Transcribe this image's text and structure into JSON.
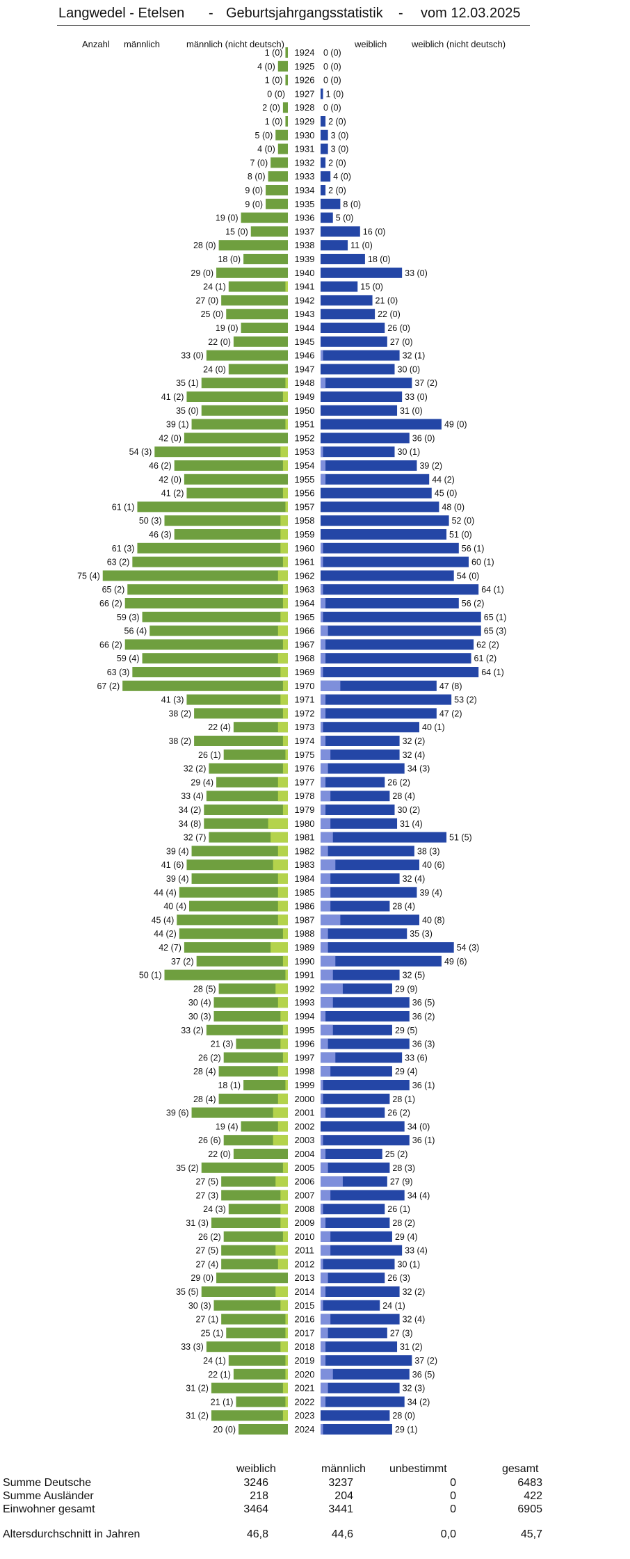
{
  "header": {
    "place": "Langwedel - Etelsen",
    "dash1": "-",
    "title": "Geburtsjahrgangsstatistik",
    "dash2": "-",
    "date": "vom 12.03.2025"
  },
  "column_headers": {
    "anzahl": "Anzahl",
    "maennlich": "männlich",
    "maennlich_nd": "männlich (nicht deutsch)",
    "weiblich": "weiblich",
    "weiblich_nd": "weiblich (nicht deutsch)"
  },
  "colors": {
    "left_main": "#6f9f3f",
    "left_foreign": "#b4d34c",
    "right_main": "#2446a6",
    "right_foreign": "#7e8fdb"
  },
  "chart_data": {
    "type": "bar",
    "orientation": "horizontal population pyramid",
    "years": [
      1924,
      1925,
      1926,
      1927,
      1928,
      1929,
      1930,
      1931,
      1932,
      1933,
      1934,
      1935,
      1936,
      1937,
      1938,
      1939,
      1940,
      1941,
      1942,
      1943,
      1944,
      1945,
      1946,
      1947,
      1948,
      1949,
      1950,
      1951,
      1952,
      1953,
      1954,
      1955,
      1956,
      1957,
      1958,
      1959,
      1960,
      1961,
      1962,
      1963,
      1964,
      1965,
      1966,
      1967,
      1968,
      1969,
      1970,
      1971,
      1972,
      1973,
      1974,
      1975,
      1976,
      1977,
      1978,
      1979,
      1980,
      1981,
      1982,
      1983,
      1984,
      1985,
      1986,
      1987,
      1988,
      1989,
      1990,
      1991,
      1992,
      1993,
      1994,
      1995,
      1996,
      1997,
      1998,
      1999,
      2000,
      2001,
      2002,
      2003,
      2004,
      2005,
      2006,
      2007,
      2008,
      2009,
      2010,
      2011,
      2012,
      2013,
      2014,
      2015,
      2016,
      2017,
      2018,
      2019,
      2020,
      2021,
      2022,
      2023,
      2024
    ],
    "left": [
      1,
      4,
      1,
      0,
      2,
      1,
      5,
      4,
      7,
      8,
      9,
      9,
      19,
      15,
      28,
      18,
      29,
      24,
      27,
      25,
      19,
      22,
      33,
      24,
      35,
      41,
      35,
      39,
      42,
      54,
      46,
      42,
      41,
      61,
      50,
      46,
      61,
      63,
      75,
      65,
      66,
      59,
      56,
      66,
      59,
      63,
      67,
      41,
      38,
      22,
      38,
      26,
      32,
      29,
      33,
      34,
      34,
      32,
      39,
      41,
      39,
      44,
      40,
      45,
      44,
      42,
      37,
      50,
      28,
      30,
      30,
      33,
      21,
      26,
      28,
      18,
      28,
      39,
      19,
      26,
      22,
      35,
      27,
      27,
      24,
      31,
      26,
      27,
      27,
      29,
      35,
      30,
      27,
      25,
      33,
      24,
      22,
      31,
      21,
      31,
      20
    ],
    "left_foreign": [
      0,
      0,
      0,
      0,
      0,
      0,
      0,
      0,
      0,
      0,
      0,
      0,
      0,
      0,
      0,
      0,
      0,
      1,
      0,
      0,
      0,
      0,
      0,
      0,
      1,
      2,
      0,
      1,
      0,
      3,
      2,
      0,
      2,
      1,
      3,
      3,
      3,
      2,
      4,
      2,
      2,
      3,
      4,
      2,
      4,
      3,
      2,
      3,
      2,
      4,
      2,
      1,
      2,
      4,
      4,
      2,
      8,
      7,
      4,
      6,
      4,
      4,
      4,
      4,
      2,
      7,
      2,
      1,
      5,
      4,
      3,
      2,
      3,
      2,
      4,
      1,
      4,
      6,
      4,
      6,
      0,
      2,
      5,
      3,
      3,
      3,
      2,
      5,
      4,
      0,
      5,
      3,
      1,
      1,
      3,
      1,
      1,
      2,
      1,
      2,
      0
    ],
    "right": [
      0,
      0,
      0,
      1,
      0,
      2,
      3,
      3,
      2,
      4,
      2,
      8,
      5,
      16,
      11,
      18,
      33,
      15,
      21,
      22,
      26,
      27,
      32,
      30,
      37,
      33,
      31,
      49,
      36,
      30,
      39,
      44,
      45,
      48,
      52,
      51,
      56,
      60,
      54,
      64,
      56,
      65,
      65,
      62,
      61,
      64,
      47,
      53,
      47,
      40,
      32,
      32,
      34,
      26,
      28,
      30,
      31,
      51,
      38,
      40,
      32,
      39,
      28,
      40,
      35,
      54,
      49,
      32,
      29,
      36,
      36,
      29,
      36,
      33,
      29,
      36,
      28,
      26,
      34,
      36,
      25,
      28,
      27,
      34,
      26,
      28,
      29,
      33,
      30,
      26,
      32,
      24,
      32,
      27,
      31,
      37,
      36,
      32,
      34,
      28,
      29
    ],
    "right_foreign": [
      0,
      0,
      0,
      0,
      0,
      0,
      0,
      0,
      0,
      0,
      0,
      0,
      0,
      0,
      0,
      0,
      0,
      0,
      0,
      0,
      0,
      0,
      1,
      0,
      2,
      0,
      0,
      0,
      0,
      1,
      2,
      2,
      0,
      0,
      0,
      0,
      1,
      1,
      0,
      1,
      2,
      1,
      3,
      2,
      2,
      1,
      8,
      2,
      2,
      1,
      2,
      4,
      3,
      2,
      4,
      2,
      4,
      5,
      3,
      6,
      4,
      4,
      4,
      8,
      3,
      3,
      6,
      5,
      9,
      5,
      2,
      5,
      3,
      6,
      4,
      1,
      1,
      2,
      0,
      1,
      2,
      3,
      9,
      4,
      1,
      2,
      4,
      4,
      1,
      3,
      2,
      1,
      4,
      3,
      2,
      2,
      5,
      3,
      2,
      0,
      1
    ]
  },
  "summary": {
    "col_weiblich": "weiblich",
    "col_maennlich": "männlich",
    "col_unbestimmt": "unbestimmt",
    "col_gesamt": "gesamt",
    "rows": [
      {
        "label": "Summe Deutsche",
        "w": "3246",
        "m": "3237",
        "u": "0",
        "g": "6483"
      },
      {
        "label": "Summe Ausländer",
        "w": "218",
        "m": "204",
        "u": "0",
        "g": "422"
      },
      {
        "label": "Einwohner gesamt",
        "w": "3464",
        "m": "3441",
        "u": "0",
        "g": "6905"
      }
    ],
    "avg": {
      "label": "Altersdurchschnitt in Jahren",
      "w": "46,8",
      "m": "44,6",
      "u": "0,0",
      "g": "45,7"
    }
  }
}
